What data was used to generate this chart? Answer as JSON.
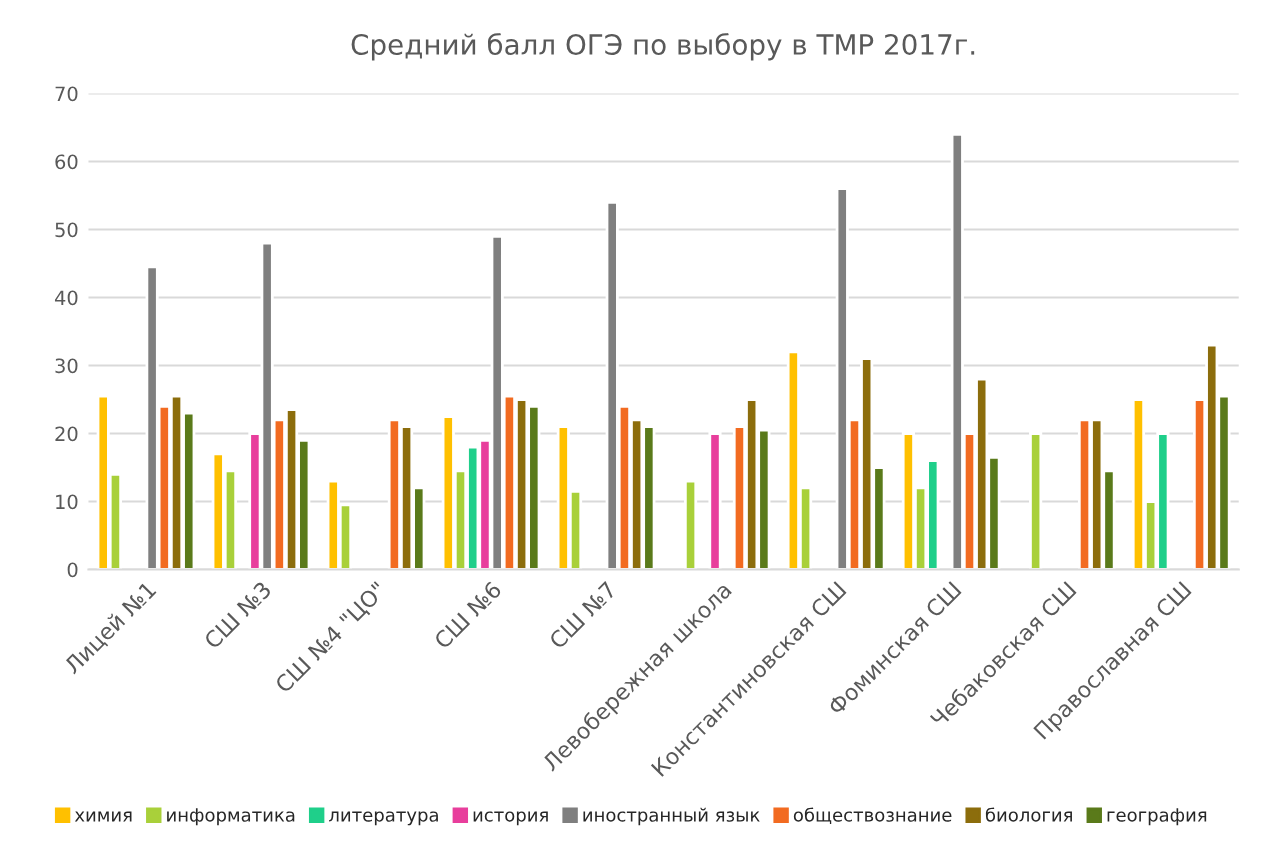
{
  "chart_data": {
    "type": "bar",
    "title": "Средний балл ОГЭ по выбору в ТМР 2017г.",
    "categories": [
      "Лицей №1",
      "СШ №3",
      "СШ №4 \"ЦО\"",
      "СШ №6",
      "СШ №7",
      "Левобережная школа",
      "Константиновская СШ",
      "Фоминская СШ",
      "Чебаковская СШ",
      "Православная СШ"
    ],
    "series": [
      {
        "name": "химия",
        "color": "#ffc000",
        "values": [
          25.5,
          17,
          13,
          22.5,
          21,
          null,
          32,
          20,
          null,
          25
        ]
      },
      {
        "name": "информатика",
        "color": "#a9d03a",
        "values": [
          14,
          14.5,
          9.5,
          14.5,
          11.5,
          13,
          12,
          12,
          20,
          10
        ]
      },
      {
        "name": "литература",
        "color": "#1fcf8a",
        "values": [
          null,
          null,
          null,
          18,
          null,
          null,
          null,
          16,
          null,
          20
        ]
      },
      {
        "name": "история",
        "color": "#e83e9c",
        "values": [
          null,
          20,
          null,
          19,
          null,
          20,
          null,
          null,
          null,
          null
        ]
      },
      {
        "name": "иностранный язык",
        "color": "#7f7f7f",
        "values": [
          44.5,
          48,
          null,
          49,
          54,
          null,
          56,
          64,
          null,
          null
        ]
      },
      {
        "name": "обществознание",
        "color": "#f26b21",
        "values": [
          24,
          22,
          22,
          25.5,
          24,
          21,
          22,
          20,
          22,
          25
        ]
      },
      {
        "name": "биология",
        "color": "#8c6d0c",
        "values": [
          25.5,
          23.5,
          21,
          25,
          22,
          25,
          31,
          28,
          22,
          33
        ]
      },
      {
        "name": "география",
        "color": "#5a7a1a",
        "values": [
          23,
          19,
          12,
          24,
          21,
          20.5,
          15,
          16.5,
          14.5,
          25.5
        ]
      }
    ],
    "ylim": [
      0,
      70
    ],
    "yticks": [
      0,
      10,
      20,
      30,
      40,
      50,
      60,
      70
    ],
    "grid": "y",
    "legend": "bottom"
  }
}
